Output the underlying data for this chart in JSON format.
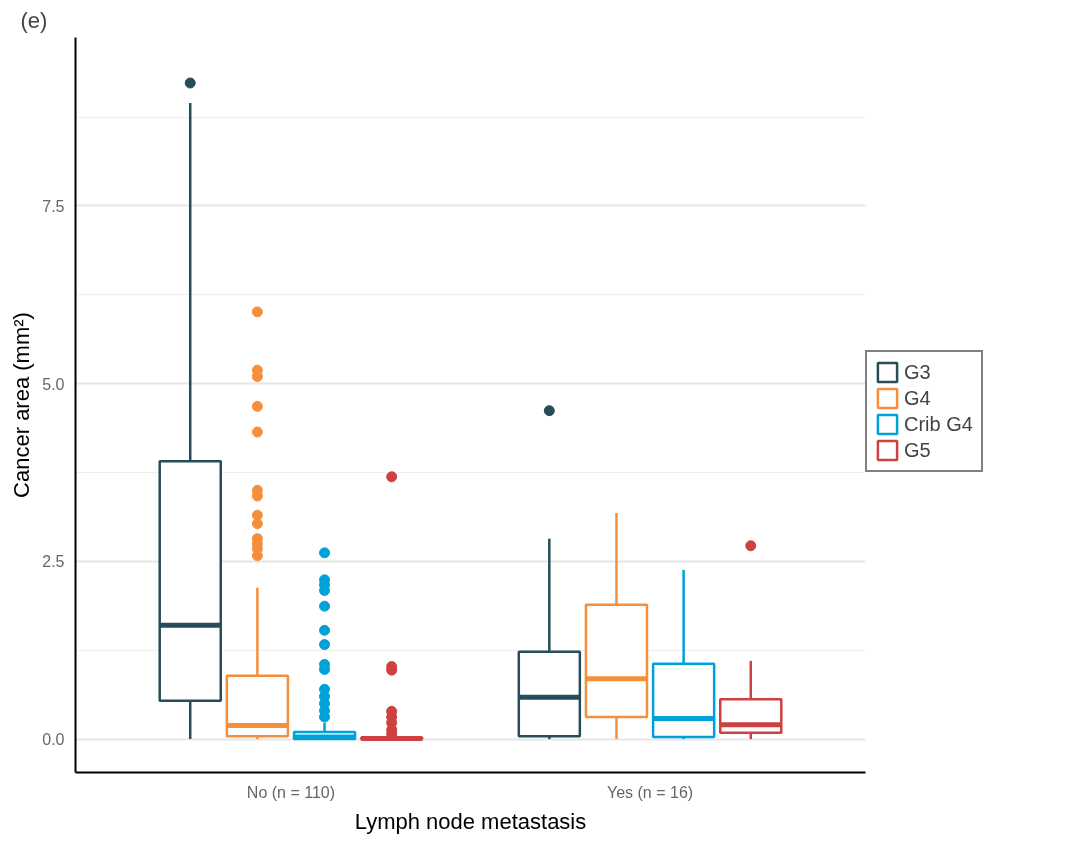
{
  "chart_data": {
    "type": "box",
    "xlabel": "Lymph node metastasis",
    "ylabel": "Cancer area (mm²)",
    "annotations": [
      "(e)"
    ],
    "categories": [
      "No (n = 110)",
      "Yes (n = 16)"
    ],
    "ylim": [
      -0.47,
      9.87
    ],
    "yticks": [
      {
        "value": 0,
        "label": "0.0"
      },
      2.5,
      {
        "value": 5,
        "label": "5.0"
      },
      7.5
    ],
    "grid": "y",
    "legend": "right",
    "series": [
      {
        "name": "G3",
        "color": "#264d59",
        "boxes": [
          {
            "low": 0,
            "q1": 0.54,
            "median": 1.6,
            "q3": 3.91,
            "high": 8.95,
            "outliers": [
              9.23
            ]
          },
          {
            "low": 0,
            "q1": 0.04,
            "median": 0.59,
            "q3": 1.23,
            "high": 2.82,
            "outliers": [
              4.62
            ]
          }
        ]
      },
      {
        "name": "G4",
        "color": "#f68f3c",
        "boxes": [
          {
            "low": 0,
            "q1": 0.04,
            "median": 0.19,
            "q3": 0.89,
            "high": 2.13,
            "outliers": [
              6.01,
              5.19,
              5.1,
              4.68,
              4.32,
              3.5,
              3.42,
              3.15,
              3.03,
              2.82,
              2.75,
              2.68,
              2.58
            ]
          },
          {
            "low": 0,
            "q1": 0.31,
            "median": 0.85,
            "q3": 1.89,
            "high": 3.18
          }
        ]
      },
      {
        "name": "Crib G4",
        "color": "#00a1d9",
        "boxes": [
          {
            "low": 0,
            "q1": 0,
            "median": 0.03,
            "q3": 0.1,
            "high": 0.23,
            "outliers": [
              2.62,
              2.24,
              2.17,
              2.09,
              1.87,
              1.53,
              1.33,
              1.05,
              0.98,
              0.7,
              0.6,
              0.5,
              0.4,
              0.31
            ]
          },
          {
            "low": 0,
            "q1": 0.03,
            "median": 0.29,
            "q3": 1.06,
            "high": 2.38
          }
        ]
      },
      {
        "name": "G5",
        "color": "#cf4140",
        "boxes": [
          {
            "low": 0,
            "q1": 0,
            "median": 0.01,
            "q3": 0.02,
            "high": 0.05,
            "outliers": [
              3.69,
              1.02,
              0.97,
              0.39,
              0.31,
              0.23,
              0.13,
              0.07
            ]
          },
          {
            "low": 0,
            "q1": 0.09,
            "median": 0.2,
            "q3": 0.56,
            "high": 1.1,
            "outliers": [
              2.72
            ]
          }
        ]
      }
    ]
  }
}
